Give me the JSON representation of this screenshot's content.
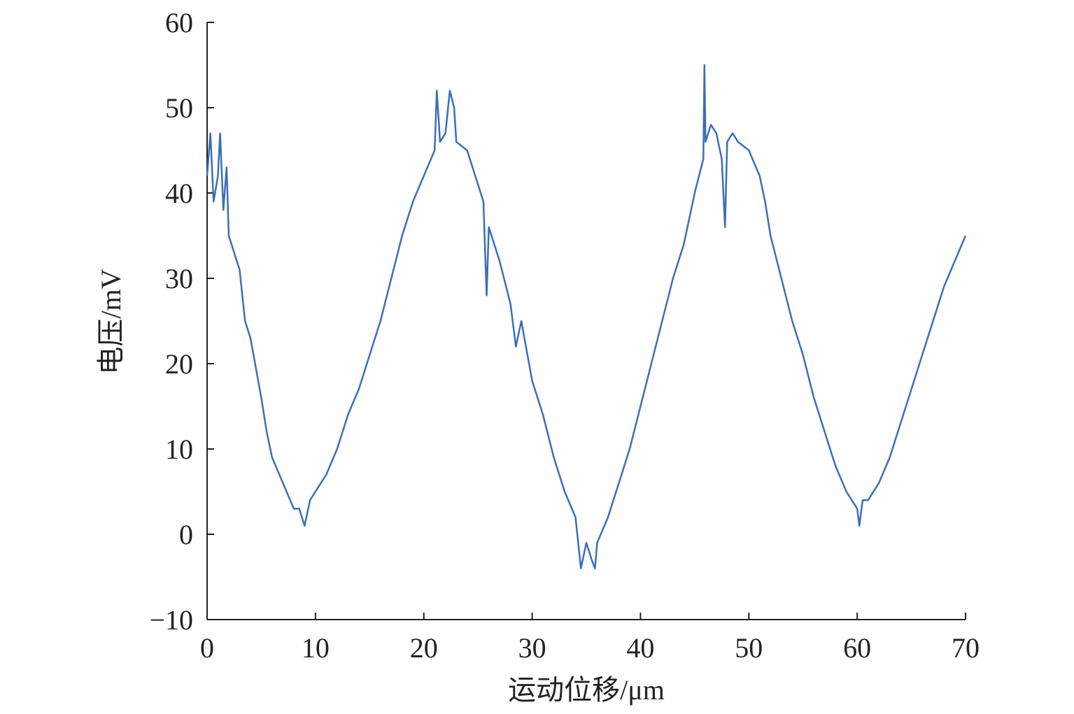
{
  "chart_data": {
    "type": "line",
    "xlabel": "运动位移/μm",
    "ylabel": "电压/mV",
    "xlim": [
      0,
      70
    ],
    "ylim": [
      -10,
      60
    ],
    "xticks": [
      0,
      10,
      20,
      30,
      40,
      50,
      60,
      70
    ],
    "yticks": [
      {
        "value": -10,
        "label": "−10"
      },
      0,
      10,
      20,
      30,
      40,
      50,
      60
    ],
    "x": [
      0,
      0.3,
      0.6,
      1,
      1.2,
      1.5,
      1.8,
      2,
      3,
      3.5,
      4,
      5,
      5.5,
      6,
      7,
      8,
      8.5,
      9,
      9.5,
      10,
      11,
      12,
      13,
      14,
      15,
      16,
      17,
      18,
      19,
      20,
      21,
      21.2,
      21.5,
      22,
      22.4,
      22.8,
      23,
      24,
      25,
      25.5,
      25.8,
      26,
      27,
      28,
      28.5,
      29,
      30,
      31,
      32,
      33,
      34,
      34.5,
      35,
      35.5,
      35.8,
      36,
      37,
      38,
      39,
      40,
      41,
      42,
      43,
      44,
      45,
      45.8,
      45.9,
      46,
      46.5,
      47,
      47.5,
      47.8,
      48,
      48.5,
      49,
      50,
      51,
      51.5,
      52,
      53,
      54,
      55,
      56,
      57,
      58,
      59,
      59.5,
      60,
      60.2,
      60.5,
      61,
      62,
      63,
      64,
      65,
      66,
      67,
      68,
      69,
      70
    ],
    "series": [
      {
        "name": "电压",
        "color": "#3a6fb8",
        "values": [
          42,
          47,
          39,
          42,
          47,
          38,
          43,
          35,
          31,
          25,
          23,
          16,
          12,
          9,
          6,
          3,
          3,
          1,
          4,
          5,
          7,
          10,
          14,
          17,
          21,
          25,
          30,
          35,
          39,
          42,
          45,
          52,
          46,
          47,
          52,
          50,
          46,
          45,
          41,
          39,
          28,
          36,
          32,
          27,
          22,
          25,
          18,
          14,
          9,
          5,
          2,
          -4,
          -1,
          -3,
          -4,
          -1,
          2,
          6,
          10,
          15,
          20,
          25,
          30,
          34,
          40,
          44,
          55,
          46,
          48,
          47,
          44,
          36,
          46,
          47,
          46,
          45,
          42,
          39,
          35,
          30,
          25,
          21,
          16,
          12,
          8,
          5,
          4,
          3,
          1,
          4,
          4,
          6,
          9,
          13,
          17,
          21,
          25,
          29,
          32,
          35
        ]
      }
    ]
  }
}
